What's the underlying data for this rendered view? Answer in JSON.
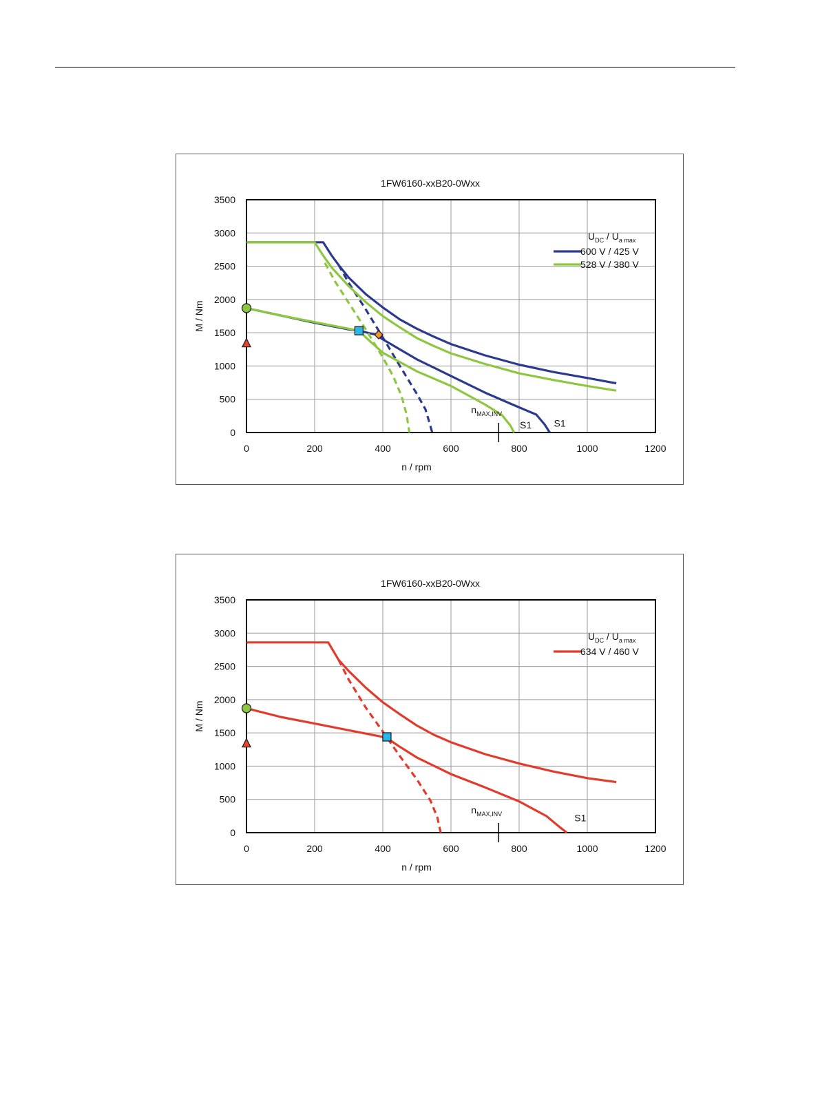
{
  "chart_data": [
    {
      "type": "line",
      "title": "1FW6160-xxB20-0Wxx",
      "xlabel": "n / rpm",
      "ylabel": "M / Nm",
      "xlim": [
        0,
        1200
      ],
      "ylim": [
        0,
        3500
      ],
      "xticks": [
        "0",
        "200",
        "400",
        "600",
        "800",
        "1000",
        "1200"
      ],
      "yticks": [
        "0",
        "500",
        "1000",
        "1500",
        "2000",
        "2500",
        "3000",
        "3500"
      ],
      "grid": true,
      "legend_position": "top-right",
      "legend_header": {
        "u": "U",
        "dc": "DC",
        "sep": " / ",
        "u2": "U",
        "amax": "a max"
      },
      "series": [
        {
          "name": "600 V / 425 V",
          "color": "#2b3a8f",
          "style": "solid",
          "points": [
            [
              0,
              2860
            ],
            [
              225,
              2860
            ],
            [
              250,
              2660
            ],
            [
              270,
              2520
            ],
            [
              300,
              2330
            ],
            [
              350,
              2080
            ],
            [
              400,
              1880
            ],
            [
              450,
              1700
            ],
            [
              500,
              1560
            ],
            [
              550,
              1440
            ],
            [
              600,
              1330
            ],
            [
              700,
              1160
            ],
            [
              800,
              1020
            ],
            [
              900,
              910
            ],
            [
              1000,
              820
            ],
            [
              1085,
              740
            ]
          ]
        },
        {
          "name": "",
          "color": "#2b3a8f",
          "style": "dashed",
          "points": [
            [
              270,
              2520
            ],
            [
              300,
              2250
            ],
            [
              350,
              1850
            ],
            [
              400,
              1430
            ],
            [
              450,
              1000
            ],
            [
              500,
              580
            ],
            [
              525,
              350
            ],
            [
              535,
              180
            ],
            [
              545,
              0
            ]
          ]
        },
        {
          "name": "",
          "color": "#2b3a8f",
          "style": "solid",
          "points": [
            [
              0,
              1870
            ],
            [
              100,
              1760
            ],
            [
              200,
              1650
            ],
            [
              300,
              1550
            ],
            [
              330,
              1530
            ],
            [
              380,
              1470
            ],
            [
              400,
              1400
            ],
            [
              500,
              1100
            ],
            [
              600,
              850
            ],
            [
              700,
              600
            ],
            [
              790,
              400
            ],
            [
              850,
              270
            ],
            [
              875,
              120
            ],
            [
              890,
              0
            ]
          ]
        },
        {
          "name": "528 V / 380 V",
          "color": "#8dc63f",
          "style": "solid",
          "points": [
            [
              0,
              2860
            ],
            [
              200,
              2860
            ],
            [
              225,
              2660
            ],
            [
              250,
              2480
            ],
            [
              300,
              2200
            ],
            [
              350,
              1960
            ],
            [
              400,
              1750
            ],
            [
              450,
              1580
            ],
            [
              500,
              1420
            ],
            [
              550,
              1300
            ],
            [
              600,
              1190
            ],
            [
              700,
              1030
            ],
            [
              800,
              890
            ],
            [
              900,
              790
            ],
            [
              1000,
              700
            ],
            [
              1085,
              630
            ]
          ]
        },
        {
          "name": "",
          "color": "#8dc63f",
          "style": "dashed",
          "points": [
            [
              230,
              2550
            ],
            [
              260,
              2270
            ],
            [
              300,
              1950
            ],
            [
              350,
              1550
            ],
            [
              400,
              1130
            ],
            [
              430,
              850
            ],
            [
              455,
              550
            ],
            [
              470,
              270
            ],
            [
              478,
              0
            ]
          ]
        },
        {
          "name": "",
          "color": "#8dc63f",
          "style": "solid",
          "points": [
            [
              0,
              1870
            ],
            [
              100,
              1760
            ],
            [
              200,
              1660
            ],
            [
              300,
              1560
            ],
            [
              330,
              1530
            ],
            [
              350,
              1430
            ],
            [
              400,
              1200
            ],
            [
              500,
              920
            ],
            [
              600,
              700
            ],
            [
              700,
              420
            ],
            [
              750,
              260
            ],
            [
              775,
              100
            ],
            [
              785,
              0
            ]
          ]
        }
      ],
      "markers": [
        {
          "shape": "circle",
          "color": "#8dc63f",
          "x": 0,
          "y": 1870
        },
        {
          "shape": "triangle",
          "color": "#e8452c",
          "x": 0,
          "y": 1340
        },
        {
          "shape": "square",
          "color": "#29b6e8",
          "x": 330,
          "y": 1530
        },
        {
          "shape": "diamond",
          "color": "#f0962c",
          "x": 388,
          "y": 1470
        }
      ],
      "annotations": [
        {
          "text_main": "n",
          "text_sub": "MAX,INV",
          "x": 740
        },
        {
          "text": "S1",
          "x": 790,
          "y": 60
        },
        {
          "text": "S1",
          "x": 890,
          "y": 90
        }
      ]
    },
    {
      "type": "line",
      "title": "1FW6160-xxB20-0Wxx",
      "xlabel": "n / rpm",
      "ylabel": "M / Nm",
      "xlim": [
        0,
        1200
      ],
      "ylim": [
        0,
        3500
      ],
      "xticks": [
        "0",
        "200",
        "400",
        "600",
        "800",
        "1000",
        "1200"
      ],
      "yticks": [
        "0",
        "500",
        "1000",
        "1500",
        "2000",
        "2500",
        "3000",
        "3500"
      ],
      "grid": true,
      "legend_position": "top-right",
      "legend_header": {
        "u": "U",
        "dc": "DC",
        "sep": " / ",
        "u2": "U",
        "amax": "a max"
      },
      "series": [
        {
          "name": "634 V / 460 V",
          "color": "#e23a2b",
          "style": "solid",
          "points": [
            [
              0,
              2860
            ],
            [
              240,
              2860
            ],
            [
              270,
              2600
            ],
            [
              300,
              2430
            ],
            [
              350,
              2180
            ],
            [
              400,
              1960
            ],
            [
              450,
              1780
            ],
            [
              500,
              1610
            ],
            [
              550,
              1470
            ],
            [
              600,
              1360
            ],
            [
              700,
              1180
            ],
            [
              800,
              1040
            ],
            [
              900,
              920
            ],
            [
              1000,
              820
            ],
            [
              1085,
              760
            ]
          ]
        },
        {
          "name": "",
          "color": "#e23a2b",
          "style": "dashed",
          "points": [
            [
              270,
              2600
            ],
            [
              300,
              2300
            ],
            [
              350,
              1880
            ],
            [
              400,
              1520
            ],
            [
              450,
              1150
            ],
            [
              500,
              800
            ],
            [
              540,
              480
            ],
            [
              560,
              230
            ],
            [
              570,
              0
            ]
          ]
        },
        {
          "name": "",
          "color": "#e23a2b",
          "style": "solid",
          "points": [
            [
              0,
              1870
            ],
            [
              100,
              1740
            ],
            [
              200,
              1640
            ],
            [
              300,
              1540
            ],
            [
              410,
              1430
            ],
            [
              450,
              1290
            ],
            [
              500,
              1130
            ],
            [
              600,
              880
            ],
            [
              700,
              680
            ],
            [
              800,
              470
            ],
            [
              880,
              250
            ],
            [
              920,
              80
            ],
            [
              940,
              0
            ]
          ]
        }
      ],
      "markers": [
        {
          "shape": "circle",
          "color": "#8dc63f",
          "x": 0,
          "y": 1870
        },
        {
          "shape": "triangle",
          "color": "#e8452c",
          "x": 0,
          "y": 1340
        },
        {
          "shape": "square",
          "color": "#29b6e8",
          "x": 412,
          "y": 1440
        }
      ],
      "annotations": [
        {
          "text_main": "n",
          "text_sub": "MAX,INV",
          "x": 740
        },
        {
          "text": "S1",
          "x": 950,
          "y": 170
        }
      ]
    }
  ]
}
